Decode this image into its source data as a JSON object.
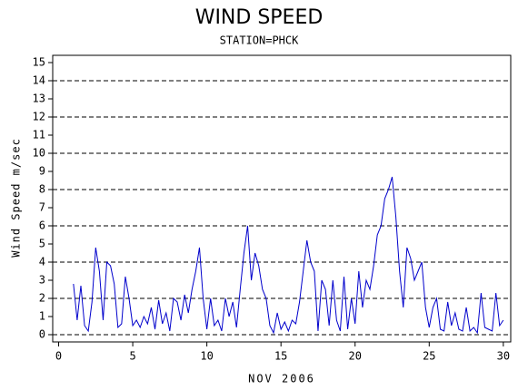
{
  "chart_data": {
    "type": "line",
    "title": "WIND SPEED",
    "subtitle": "STATION=PHCK",
    "x_label": "NOV 2006",
    "y_label": "Wind Speed m/sec",
    "xlim": [
      -0.4,
      30.5
    ],
    "ylim": [
      -0.4,
      15.4
    ],
    "xticks": [
      0,
      5,
      10,
      15,
      20,
      25,
      30
    ],
    "yticks": [
      0,
      1,
      2,
      3,
      4,
      5,
      6,
      7,
      8,
      9,
      10,
      11,
      12,
      13,
      14,
      15
    ],
    "grid": true,
    "x": [
      1.0,
      1.25,
      1.5,
      1.75,
      2.0,
      2.25,
      2.5,
      2.75,
      3.0,
      3.25,
      3.5,
      3.75,
      4.0,
      4.25,
      4.5,
      4.75,
      5.0,
      5.25,
      5.5,
      5.75,
      6.0,
      6.25,
      6.5,
      6.75,
      7.0,
      7.25,
      7.5,
      7.75,
      8.0,
      8.25,
      8.5,
      8.75,
      9.0,
      9.25,
      9.5,
      9.75,
      10.0,
      10.25,
      10.5,
      10.75,
      11.0,
      11.25,
      11.5,
      11.75,
      12.0,
      12.25,
      12.5,
      12.75,
      13.0,
      13.25,
      13.5,
      13.75,
      14.0,
      14.25,
      14.5,
      14.75,
      15.0,
      15.25,
      15.5,
      15.75,
      16.0,
      16.25,
      16.5,
      16.75,
      17.0,
      17.25,
      17.5,
      17.75,
      18.0,
      18.25,
      18.5,
      18.75,
      19.0,
      19.25,
      19.5,
      19.75,
      20.0,
      20.25,
      20.5,
      20.75,
      21.0,
      21.25,
      21.5,
      21.75,
      22.0,
      22.25,
      22.5,
      22.75,
      23.0,
      23.25,
      23.5,
      23.75,
      24.0,
      24.25,
      24.5,
      24.75,
      25.0,
      25.25,
      25.5,
      25.75,
      26.0,
      26.25,
      26.5,
      26.75,
      27.0,
      27.25,
      27.5,
      27.75,
      28.0,
      28.25,
      28.5,
      28.75,
      29.0,
      29.25,
      29.5,
      29.75,
      30.0
    ],
    "series": [
      {
        "name": "Wind Speed",
        "color": "#0000cc",
        "values": [
          2.8,
          0.8,
          2.7,
          0.5,
          0.2,
          1.8,
          4.8,
          3.5,
          0.8,
          4.0,
          3.8,
          2.8,
          0.4,
          0.6,
          3.2,
          2.0,
          0.5,
          0.8,
          0.4,
          1.0,
          0.6,
          1.5,
          0.3,
          1.9,
          0.6,
          1.2,
          0.2,
          2.0,
          1.8,
          0.8,
          2.2,
          1.2,
          2.5,
          3.5,
          4.8,
          2.0,
          0.3,
          2.0,
          0.5,
          0.8,
          0.2,
          2.0,
          1.0,
          1.8,
          0.4,
          2.5,
          4.5,
          6.0,
          3.0,
          4.5,
          3.8,
          2.5,
          2.0,
          0.5,
          0.1,
          1.2,
          0.3,
          0.7,
          0.2,
          0.8,
          0.6,
          1.8,
          3.5,
          5.2,
          4.0,
          3.5,
          0.2,
          3.0,
          2.5,
          0.5,
          3.0,
          0.8,
          0.2,
          3.2,
          0.3,
          2.0,
          0.6,
          3.5,
          1.5,
          3.0,
          2.5,
          3.8,
          5.5,
          6.0,
          7.5,
          8.0,
          8.7,
          6.5,
          3.5,
          1.5,
          4.8,
          4.2,
          3.0,
          3.5,
          4.0,
          1.5,
          0.4,
          1.5,
          2.0,
          0.3,
          0.2,
          1.8,
          0.5,
          1.2,
          0.3,
          0.2,
          1.5,
          0.2,
          0.4,
          0.1,
          2.3,
          0.4,
          0.3,
          0.2,
          2.3,
          0.5,
          0.8
        ]
      }
    ]
  }
}
